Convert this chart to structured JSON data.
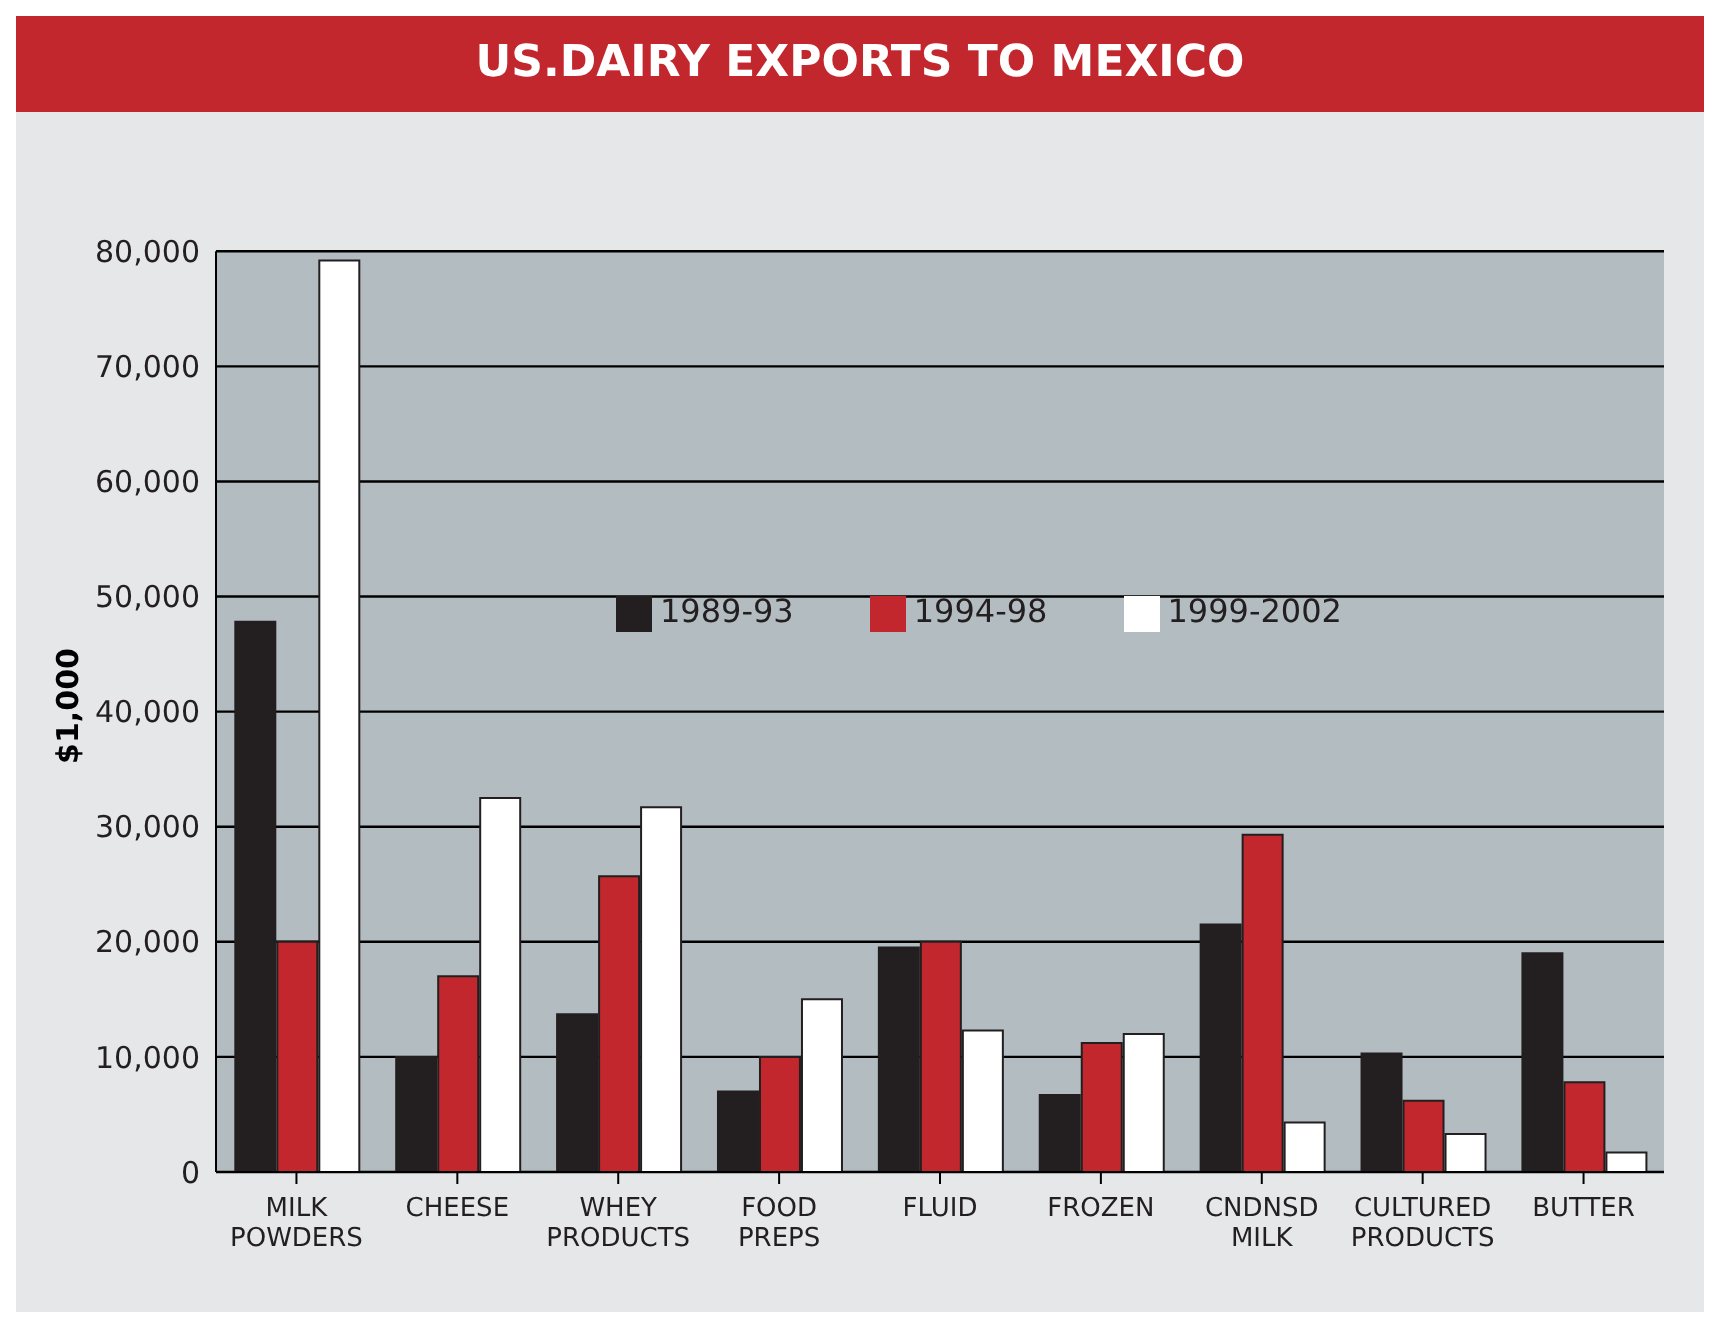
{
  "chart_data": {
    "type": "bar",
    "title": "US.DAIRY EXPORTS TO MEXICO",
    "ylabel": "$1,000",
    "categories": [
      "MILK POWDERS",
      "CHEESE",
      "WHEY PRODUCTS",
      "FOOD PREPS",
      "FLUID",
      "FROZEN",
      "CNDNSD MILK",
      "CULTURED PRODUCTS",
      "BUTTER"
    ],
    "series": [
      {
        "name": "1989-93",
        "color": "#231f20",
        "values": [
          47800,
          10000,
          13700,
          7000,
          19500,
          6700,
          21500,
          10300,
          19000
        ]
      },
      {
        "name": "1994-98",
        "color": "#c1272d",
        "values": [
          20000,
          17000,
          25700,
          10000,
          20000,
          11200,
          29300,
          6200,
          7800
        ]
      },
      {
        "name": "1999-2002",
        "color": "#ffffff",
        "values": [
          79200,
          32500,
          31700,
          15000,
          12300,
          12000,
          4300,
          3300,
          1700
        ]
      }
    ],
    "ylim": [
      0,
      80000
    ],
    "yticks": [
      {
        "value": 0,
        "label": "0"
      },
      {
        "value": 10000,
        "label": "10,000"
      },
      {
        "value": 20000,
        "label": "20,000"
      },
      {
        "value": 30000,
        "label": "30,000"
      },
      {
        "value": 40000,
        "label": "40,000"
      },
      {
        "value": 50000,
        "label": "50,000"
      },
      {
        "value": 60000,
        "label": "60,000"
      },
      {
        "value": 70000,
        "label": "70,000"
      },
      {
        "value": 80000,
        "label": "80,000"
      }
    ],
    "grid": "y",
    "legend": "top"
  }
}
